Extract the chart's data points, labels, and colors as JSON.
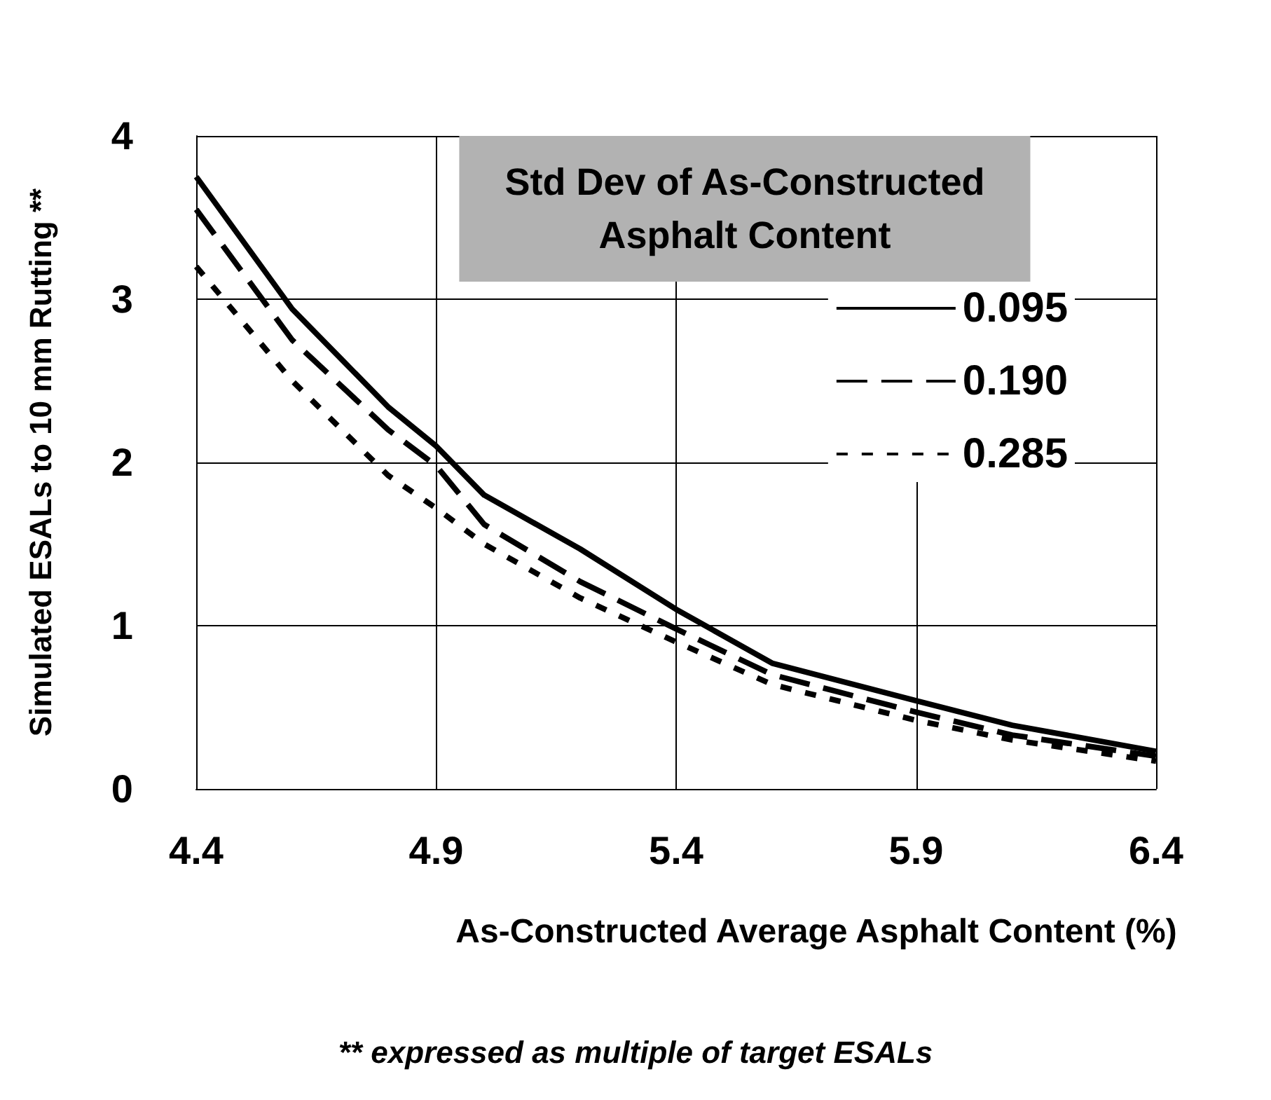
{
  "chart_data": {
    "type": "line",
    "xlabel": "As-Constructed Average Asphalt Content (%)",
    "ylabel": "Simulated ESALs to 10 mm Rutting **",
    "legend_title": "Std Dev of As-Constructed\nAsphalt Content",
    "annotations": [
      "** expressed as multiple of target ESALs"
    ],
    "x": [
      4.4,
      4.6,
      4.8,
      4.9,
      5.0,
      5.2,
      5.4,
      5.6,
      5.9,
      6.1,
      6.4
    ],
    "series": [
      {
        "name": "0.095",
        "color": "#000000",
        "line_style": "solid",
        "values": [
          3.75,
          2.94,
          2.34,
          2.1,
          1.8,
          1.47,
          1.1,
          0.77,
          0.54,
          0.39,
          0.23
        ]
      },
      {
        "name": "0.190",
        "color": "#000000",
        "line_style": "dashed",
        "values": [
          3.55,
          2.75,
          2.2,
          1.98,
          1.62,
          1.27,
          0.98,
          0.7,
          0.47,
          0.33,
          0.2
        ]
      },
      {
        "name": "0.285",
        "color": "#000000",
        "line_style": "dotted",
        "values": [
          3.2,
          2.5,
          1.92,
          1.72,
          1.5,
          1.17,
          0.9,
          0.64,
          0.42,
          0.3,
          0.17
        ]
      }
    ],
    "xlim": [
      4.4,
      6.4
    ],
    "xticks": [
      4.4,
      4.9,
      5.4,
      5.9,
      6.4
    ],
    "ylim": [
      0,
      4
    ],
    "yticks": [
      0,
      1,
      2,
      3,
      4
    ],
    "grid": true,
    "legend": "top right",
    "marker": "none"
  }
}
